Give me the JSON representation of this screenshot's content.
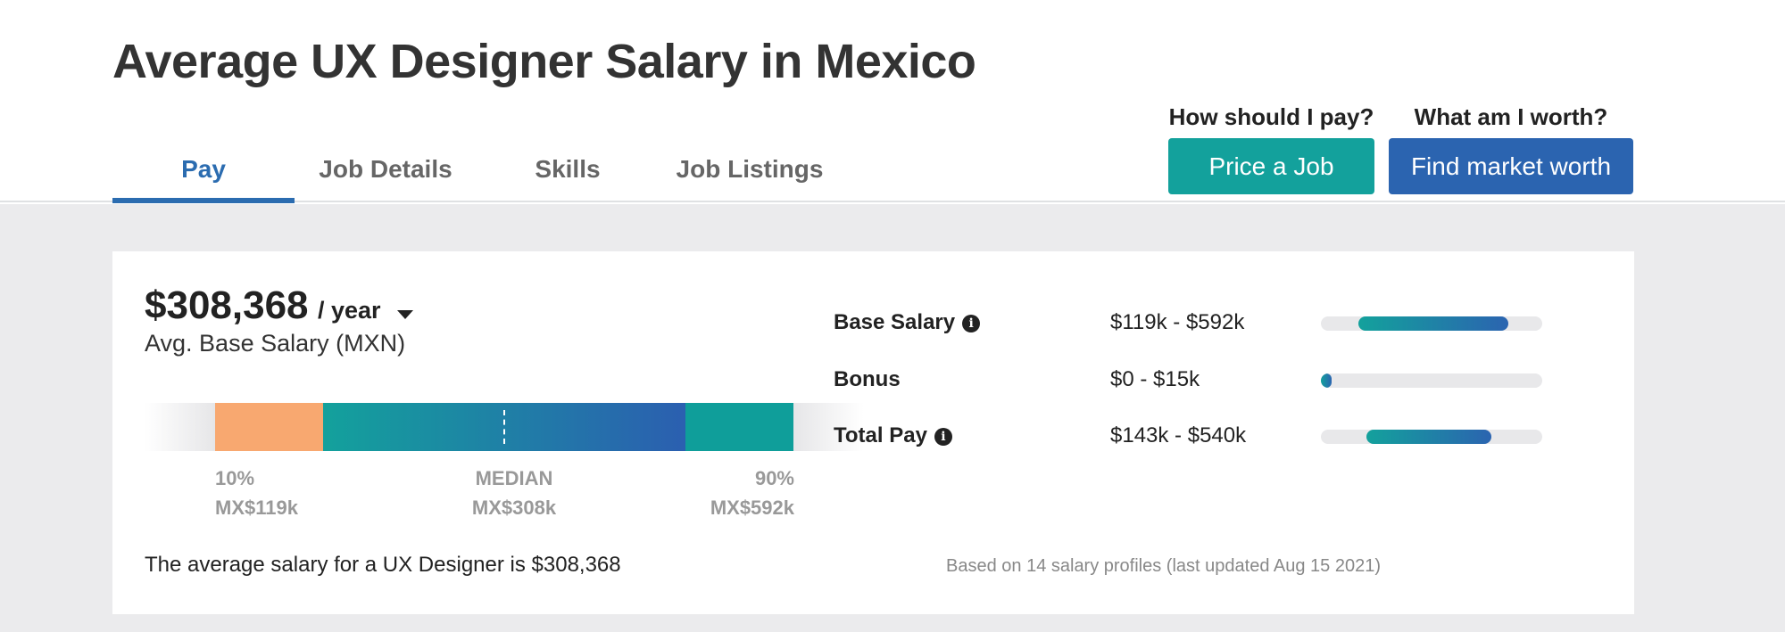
{
  "header": {
    "title": "Average UX Designer Salary in Mexico",
    "tabs": [
      {
        "label": "Pay",
        "active": true
      },
      {
        "label": "Job Details",
        "active": false
      },
      {
        "label": "Skills",
        "active": false
      },
      {
        "label": "Job Listings",
        "active": false
      }
    ],
    "cta_price": {
      "question": "How should I pay?",
      "button": "Price a Job"
    },
    "cta_worth": {
      "question": "What am I worth?",
      "button": "Find market worth"
    }
  },
  "summary": {
    "amount": "$308,368",
    "period": "/ year",
    "caption": "Avg. Base Salary (MXN)",
    "text": "The average salary for a UX Designer is $308,368"
  },
  "distribution": {
    "low": {
      "percentile": "10%",
      "value": "MX$119k"
    },
    "median": {
      "percentile": "MEDIAN",
      "value": "MX$308k"
    },
    "high": {
      "percentile": "90%",
      "value": "MX$592k"
    }
  },
  "pay_breakdown": [
    {
      "name": "Base Salary",
      "has_info": true,
      "range": "$119k - $592k",
      "min_k": 119,
      "max_k": 592
    },
    {
      "name": "Bonus",
      "has_info": false,
      "range": "$0 - $15k",
      "min_k": 0,
      "max_k": 15
    },
    {
      "name": "Total Pay",
      "has_info": true,
      "range": "$143k - $540k",
      "min_k": 143,
      "max_k": 540
    }
  ],
  "footnote": "Based on 14 salary profiles (last updated Aug 15 2021)",
  "colors": {
    "accent_blue": "#2b6cb0",
    "teal": "#13a19c",
    "orange": "#f8a870"
  },
  "icons": {
    "info": "info-icon",
    "caret": "chevron-down-icon"
  }
}
